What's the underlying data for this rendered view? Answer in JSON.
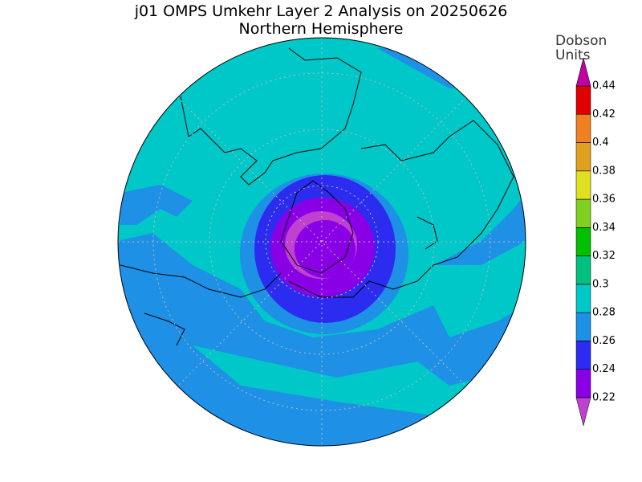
{
  "title": "j01 OMPS Umkehr Layer 2 Analysis on 20250626",
  "subtitle": "Northern Hemisphere",
  "colorbar": {
    "label_lines": [
      "Dobson",
      "Units"
    ],
    "ticks": [
      0.22,
      0.24,
      0.26,
      0.28,
      0.3,
      0.32,
      0.34,
      0.36,
      0.38,
      0.4,
      0.42,
      0.44
    ],
    "colors": [
      "#8a00e6",
      "#2c2cf0",
      "#1e90e6",
      "#00c8c8",
      "#00c080",
      "#00c000",
      "#80d020",
      "#e0e020",
      "#e0a020",
      "#f08020",
      "#e00000"
    ],
    "under_color": "#c040d0",
    "over_color": "#c000a0"
  }
}
